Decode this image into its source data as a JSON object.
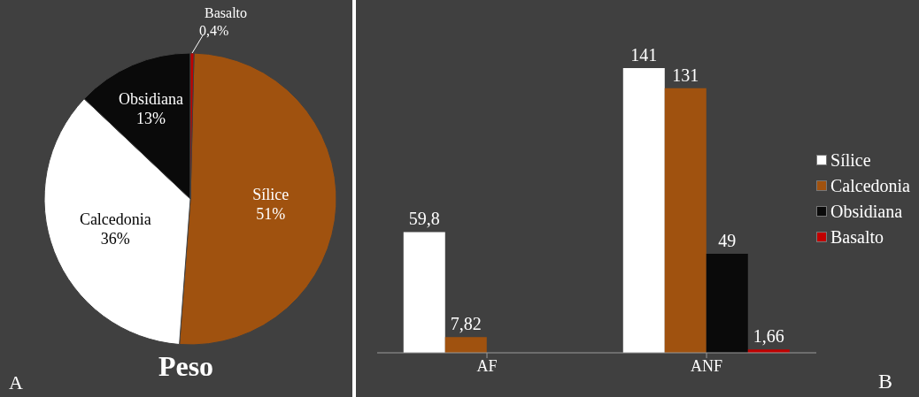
{
  "chart_data": [
    {
      "type": "pie",
      "title": "Peso",
      "annotations": [
        "A"
      ],
      "categories": [
        "Sílice",
        "Calcedonia",
        "Obsidiana",
        "Basalto"
      ],
      "values": [
        51,
        36,
        13,
        0.4
      ],
      "value_labels": [
        "51%",
        "36%",
        "13%",
        "0,4%"
      ],
      "colors": [
        "#a0520f",
        "#ffffff",
        "#0a0a0a",
        "#c00000"
      ]
    },
    {
      "type": "bar",
      "annotations": [
        "B"
      ],
      "categories": [
        "AF",
        "ANF"
      ],
      "legend": "right",
      "series": [
        {
          "name": "Sílice",
          "color": "#ffffff",
          "values": [
            59.8,
            141
          ],
          "value_labels": [
            "59,8",
            "141"
          ]
        },
        {
          "name": "Calcedonia",
          "color": "#a0520f",
          "values": [
            7.82,
            131
          ],
          "value_labels": [
            "7,82",
            "131"
          ]
        },
        {
          "name": "Obsidiana",
          "color": "#0a0a0a",
          "values": [
            null,
            49
          ],
          "value_labels": [
            null,
            "49"
          ]
        },
        {
          "name": "Basalto",
          "color": "#c00000",
          "values": [
            null,
            1.66
          ],
          "value_labels": [
            null,
            "1,66"
          ]
        }
      ]
    }
  ]
}
